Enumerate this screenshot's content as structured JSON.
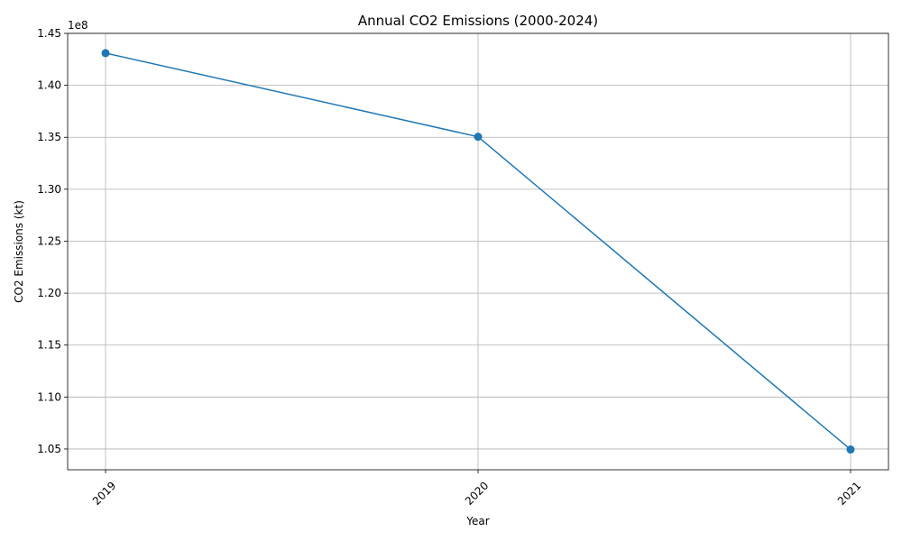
{
  "chart_data": {
    "type": "line",
    "title": "Annual CO2 Emissions (2000-2024)",
    "xlabel": "Year",
    "ylabel": "CO2 Emissions (kt)",
    "x": [
      "2019",
      "2020",
      "2021"
    ],
    "series": [
      {
        "values": [
          143100000,
          135050000,
          104950000
        ],
        "color": "#1f77b4",
        "marker": "circle"
      }
    ],
    "ylim": [
      103000000,
      145000000
    ],
    "y_ticks": [
      105000000,
      110000000,
      115000000,
      120000000,
      125000000,
      130000000,
      135000000,
      140000000,
      145000000
    ],
    "y_tick_labels": [
      "1.05",
      "1.10",
      "1.15",
      "1.20",
      "1.25",
      "1.30",
      "1.35",
      "1.40",
      "1.45"
    ],
    "y_offset_label": "1e8",
    "x_tick_rotation": 45,
    "grid": true
  }
}
